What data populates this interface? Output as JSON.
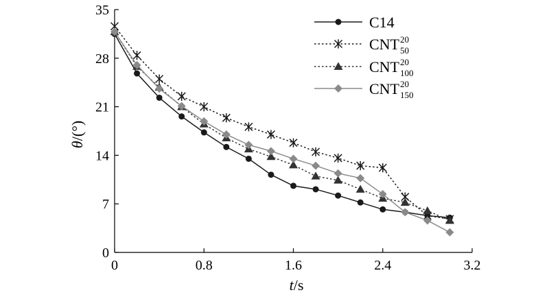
{
  "chart_data": {
    "type": "line",
    "title": "",
    "xlabel": {
      "var": "t",
      "unit": "/s"
    },
    "ylabel": {
      "var": "θ",
      "unit": "/(°)"
    },
    "xlim": [
      0,
      3.2
    ],
    "ylim": [
      0,
      35
    ],
    "xticks": [
      "0",
      "0.8",
      "1.6",
      "2.4",
      "3.2"
    ],
    "yticks": [
      "0",
      "7",
      "14",
      "21",
      "28",
      "35"
    ],
    "grid": false,
    "legend_position": "top-right",
    "series": [
      {
        "name": "C14",
        "base": "C14",
        "sup": "",
        "sub": "",
        "marker": "circle",
        "color": "#1a1a1a",
        "dash": "solid",
        "x": [
          0,
          0.2,
          0.4,
          0.6,
          0.8,
          1.0,
          1.2,
          1.4,
          1.6,
          1.8,
          2.0,
          2.2,
          2.4,
          2.6,
          2.8,
          3.0
        ],
        "y": [
          31.5,
          25.8,
          22.3,
          19.6,
          17.3,
          15.2,
          13.5,
          11.2,
          9.6,
          9.1,
          8.2,
          7.2,
          6.2,
          5.8,
          5.3,
          5.0
        ]
      },
      {
        "name": "CNT 20 50",
        "base": "CNT",
        "sup": "20",
        "sub": "50",
        "marker": "asterisk",
        "color": "#1a1a1a",
        "dash": "dotted",
        "x": [
          0,
          0.2,
          0.4,
          0.6,
          0.8,
          1.0,
          1.2,
          1.4,
          1.6,
          1.8,
          2.0,
          2.2,
          2.4,
          2.6,
          2.8,
          3.0
        ],
        "y": [
          32.6,
          28.4,
          25.0,
          22.5,
          21.0,
          19.4,
          18.1,
          17.0,
          15.8,
          14.5,
          13.6,
          12.5,
          12.2,
          8.0,
          5.3,
          4.8
        ]
      },
      {
        "name": "CNT 20 100",
        "base": "CNT",
        "sup": "20",
        "sub": "100",
        "marker": "triangle",
        "color": "#333333",
        "dash": "dotted",
        "x": [
          0,
          0.2,
          0.4,
          0.6,
          0.8,
          1.0,
          1.2,
          1.4,
          1.6,
          1.8,
          2.0,
          2.2,
          2.4,
          2.6,
          2.8,
          3.0
        ],
        "y": [
          31.8,
          26.8,
          23.8,
          21.0,
          18.5,
          16.5,
          14.9,
          13.8,
          12.6,
          11.0,
          10.4,
          9.1,
          7.8,
          7.2,
          6.0,
          4.6
        ]
      },
      {
        "name": "CNT 20 150",
        "base": "CNT",
        "sup": "20",
        "sub": "150",
        "marker": "diamond",
        "color": "#8a8a8a",
        "dash": "solid",
        "x": [
          0,
          0.2,
          0.4,
          0.6,
          0.8,
          1.0,
          1.2,
          1.4,
          1.6,
          1.8,
          2.0,
          2.2,
          2.4,
          2.6,
          2.8,
          3.0
        ],
        "y": [
          31.8,
          27.0,
          23.6,
          21.1,
          18.9,
          17.0,
          15.5,
          14.6,
          13.5,
          12.5,
          11.4,
          10.7,
          8.4,
          5.8,
          4.6,
          2.9
        ]
      }
    ]
  }
}
